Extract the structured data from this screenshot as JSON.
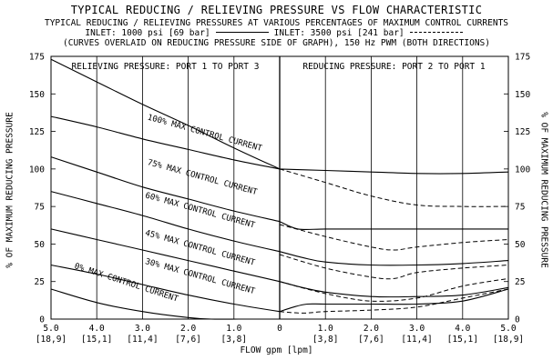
{
  "chart_data": {
    "type": "line",
    "title": "TYPICAL REDUCING / RELIEVING PRESSURE VS FLOW CHARACTERISTIC",
    "subtitle": "TYPICAL REDUCING / RELIEVING PRESSURES AT VARIOUS PERCENTAGES OF MAXIMUM CONTROL CURRENTS",
    "legend": {
      "solid_label": "INLET: 1000 psi [69 bar]",
      "dashed_label": "INLET: 3500 psi [241 bar]"
    },
    "note": "(CURVES OVERLAID ON REDUCING PRESSURE SIDE OF GRAPH), 150 Hz PWM (BOTH DIRECTIONS)",
    "ylabel": "% OF MAXIMUM REDUCING PRESSURE",
    "xlabel": "FLOW gpm [lpm]",
    "ylim": [
      0,
      175
    ],
    "y_ticks": [
      "0",
      "25",
      "50",
      "75",
      "100",
      "125",
      "150",
      "175"
    ],
    "x_ticks": [
      {
        "gpm": "5.0",
        "lpm": "[18,9]"
      },
      {
        "gpm": "4.0",
        "lpm": "[15,1]"
      },
      {
        "gpm": "3.0",
        "lpm": "[11,4]"
      },
      {
        "gpm": "2.0",
        "lpm": "[7,6]"
      },
      {
        "gpm": "1.0",
        "lpm": "[3,8]"
      },
      {
        "gpm": "0",
        "lpm": ""
      },
      {
        "gpm": "1.0",
        "lpm": "[3,8]"
      },
      {
        "gpm": "2.0",
        "lpm": "[7,6]"
      },
      {
        "gpm": "3.0",
        "lpm": "[11,4]"
      },
      {
        "gpm": "4.0",
        "lpm": "[15,1]"
      },
      {
        "gpm": "5.0",
        "lpm": "[18,9]"
      }
    ],
    "regions": {
      "left": "RELIEVING PRESSURE: PORT 1 TO PORT 3",
      "right": "REDUCING PRESSURE: PORT 2 TO PORT 1"
    },
    "grid": true,
    "relieving_series": [
      {
        "name": "100% MAX CONTROL CURRENT",
        "x": [
          -5,
          -4,
          -3,
          -2,
          -1,
          0
        ],
        "y": [
          135,
          128,
          120,
          113,
          106,
          100
        ]
      },
      {
        "name": "75% MAX CONTROL CURRENT",
        "x": [
          -5,
          -4,
          -3,
          -2,
          -1,
          0
        ],
        "y": [
          108,
          98,
          88,
          80,
          72,
          65
        ]
      },
      {
        "name": "60% MAX CONTROL CURRENT",
        "x": [
          -5,
          -4,
          -3,
          -2,
          -1,
          0
        ],
        "y": [
          85,
          77,
          69,
          60,
          52,
          45
        ]
      },
      {
        "name": "45% MAX CONTROL CURRENT",
        "x": [
          -5,
          -4,
          -3,
          -2,
          -1,
          0
        ],
        "y": [
          60,
          53,
          46,
          39,
          32,
          25
        ]
      },
      {
        "name": "30% MAX CONTROL CURRENT",
        "x": [
          -5,
          -4,
          -3,
          -2,
          -1,
          0
        ],
        "y": [
          36,
          30,
          23,
          16,
          10,
          5
        ]
      },
      {
        "name": "0% MAX CONTROL CURRENT",
        "x": [
          -5,
          -4,
          -3,
          -2,
          -1.5,
          -0.9,
          0
        ],
        "y": [
          20,
          11,
          5,
          1,
          0,
          0,
          0
        ]
      }
    ],
    "top_curve": {
      "x": [
        -5,
        -4,
        -3,
        -2,
        -1,
        0
      ],
      "y": [
        173,
        158,
        143,
        129,
        114,
        100
      ]
    },
    "reducing_solid": [
      {
        "x": [
          0,
          1,
          2,
          3,
          4,
          5
        ],
        "y": [
          100,
          99,
          98,
          97,
          97,
          98
        ]
      },
      {
        "x": [
          0,
          0.4,
          1,
          2,
          3,
          4,
          5
        ],
        "y": [
          65,
          60,
          60,
          60,
          60,
          60,
          60
        ]
      },
      {
        "x": [
          0,
          0.5,
          1,
          2,
          3,
          4,
          5
        ],
        "y": [
          45,
          41,
          38,
          36,
          36,
          37,
          39
        ]
      },
      {
        "x": [
          0,
          0.5,
          1,
          2,
          3,
          4,
          5
        ],
        "y": [
          25,
          21,
          18,
          15,
          15,
          16,
          21
        ]
      },
      {
        "x": [
          0,
          0.3,
          0.6,
          1,
          2,
          3,
          4,
          5
        ],
        "y": [
          5,
          8,
          10,
          10,
          10,
          10,
          12,
          20
        ]
      }
    ],
    "reducing_dashed": [
      {
        "x": [
          0,
          1,
          2,
          3,
          4,
          5
        ],
        "y": [
          100,
          91,
          82,
          76,
          75,
          75
        ]
      },
      {
        "x": [
          0,
          1,
          2,
          2.5,
          3,
          4,
          5
        ],
        "y": [
          63,
          55,
          48,
          46,
          48,
          51,
          53
        ]
      },
      {
        "x": [
          0,
          1,
          2,
          2.5,
          3,
          4,
          5
        ],
        "y": [
          43,
          34,
          28,
          27,
          31,
          34,
          36
        ]
      },
      {
        "x": [
          0,
          1,
          2,
          3,
          4,
          5
        ],
        "y": [
          25,
          17,
          12,
          14,
          22,
          27
        ]
      },
      {
        "x": [
          0,
          0.5,
          1,
          2,
          3,
          4,
          5
        ],
        "y": [
          5,
          4,
          5,
          6,
          8,
          14,
          20
        ]
      }
    ]
  }
}
